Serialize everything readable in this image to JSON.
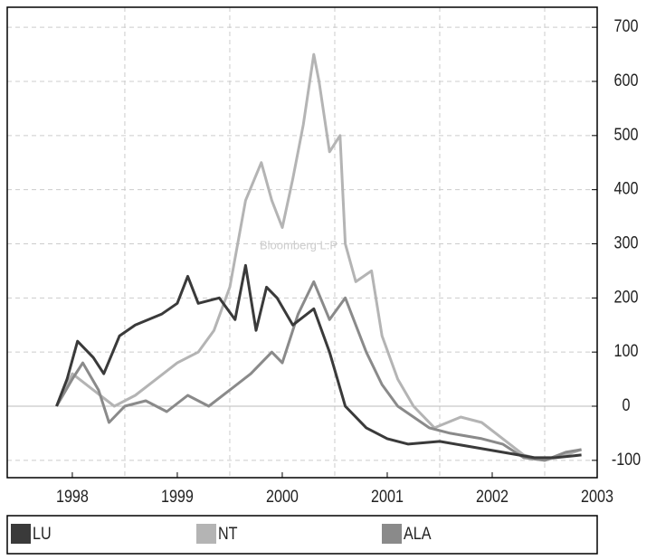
{
  "chart_data": {
    "type": "line",
    "watermark": "Bloomberg L.P",
    "xlim": [
      1997.38,
      2003.0
    ],
    "xticks": [
      1998,
      1999,
      2000,
      2001,
      2002,
      2003
    ],
    "ylim": [
      -132,
      737
    ],
    "yticks": [
      -100,
      0,
      100,
      200,
      300,
      400,
      500,
      600,
      700
    ],
    "grid": true,
    "legend": "bottom",
    "series": [
      {
        "name": "LU",
        "color": "#3a3a3a",
        "x": [
          1997.85,
          1997.95,
          1998.05,
          1998.2,
          1998.3,
          1998.45,
          1998.6,
          1998.85,
          1999.0,
          1999.1,
          1999.2,
          1999.4,
          1999.55,
          1999.65,
          1999.75,
          1999.85,
          1999.95,
          2000.1,
          2000.3,
          2000.45,
          2000.6,
          2000.8,
          2001.0,
          2001.2,
          2001.5,
          2001.8,
          2002.1,
          2002.4,
          2002.6,
          2002.85
        ],
        "values": [
          0,
          50,
          120,
          90,
          60,
          130,
          150,
          170,
          190,
          240,
          190,
          200,
          160,
          260,
          140,
          220,
          200,
          150,
          180,
          100,
          0,
          -40,
          -60,
          -70,
          -65,
          -75,
          -85,
          -95,
          -95,
          -90
        ]
      },
      {
        "name": "NT",
        "color": "#b4b4b4",
        "x": [
          1997.85,
          1998.0,
          1998.2,
          1998.4,
          1998.6,
          1998.8,
          1999.0,
          1999.2,
          1999.35,
          1999.5,
          1999.65,
          1999.8,
          1999.9,
          2000.0,
          2000.1,
          2000.2,
          2000.3,
          2000.35,
          2000.45,
          2000.55,
          2000.6,
          2000.7,
          2000.85,
          2000.95,
          2001.1,
          2001.25,
          2001.45,
          2001.7,
          2001.9,
          2002.1,
          2002.3,
          2002.5,
          2002.7,
          2002.85
        ],
        "values": [
          0,
          60,
          30,
          0,
          20,
          50,
          80,
          100,
          140,
          220,
          380,
          450,
          380,
          330,
          420,
          520,
          650,
          600,
          470,
          500,
          300,
          230,
          250,
          130,
          50,
          0,
          -40,
          -20,
          -30,
          -60,
          -90,
          -100,
          -90,
          -80
        ]
      },
      {
        "name": "ALA",
        "color": "#8a8a8a",
        "x": [
          1997.85,
          1998.0,
          1998.1,
          1998.25,
          1998.35,
          1998.5,
          1998.7,
          1998.9,
          1999.1,
          1999.3,
          1999.5,
          1999.7,
          1999.9,
          2000.0,
          2000.15,
          2000.3,
          2000.45,
          2000.6,
          2000.8,
          2000.95,
          2001.1,
          2001.4,
          2001.6,
          2001.9,
          2002.1,
          2002.3,
          2002.5,
          2002.7,
          2002.85
        ],
        "values": [
          0,
          50,
          80,
          30,
          -30,
          0,
          10,
          -10,
          20,
          0,
          30,
          60,
          100,
          80,
          170,
          230,
          160,
          200,
          100,
          40,
          0,
          -40,
          -50,
          -60,
          -70,
          -95,
          -100,
          -85,
          -80
        ]
      }
    ]
  }
}
